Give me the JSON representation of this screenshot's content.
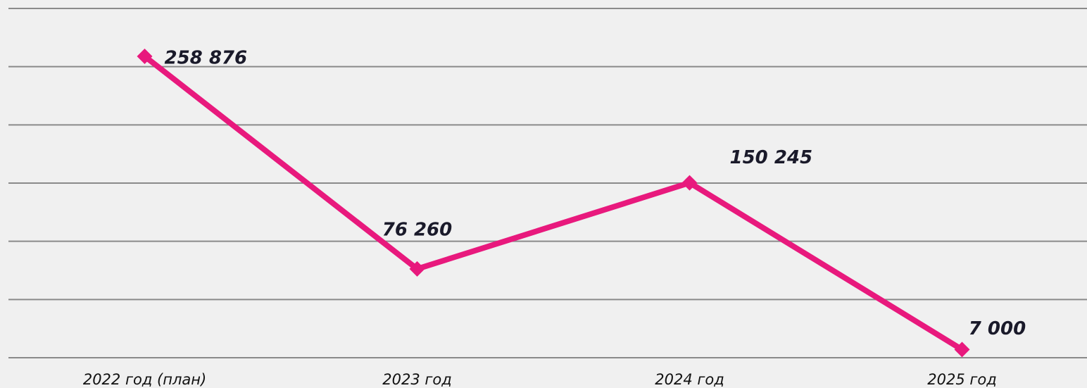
{
  "chart_data": {
    "type": "line",
    "categories": [
      "2022 год (план)",
      "2023 год",
      "2024 год",
      "2025 год"
    ],
    "series": [
      {
        "name": null,
        "color": "#e8197d",
        "values": [
          258876,
          76260,
          150245,
          7000
        ],
        "value_labels": [
          "258 876",
          "76 260",
          "150 245",
          "7 000"
        ]
      }
    ],
    "ylim": [
      0,
      300000
    ],
    "yticks": [
      0,
      50000,
      100000,
      150000,
      200000,
      250000,
      300000
    ],
    "grid": true
  }
}
